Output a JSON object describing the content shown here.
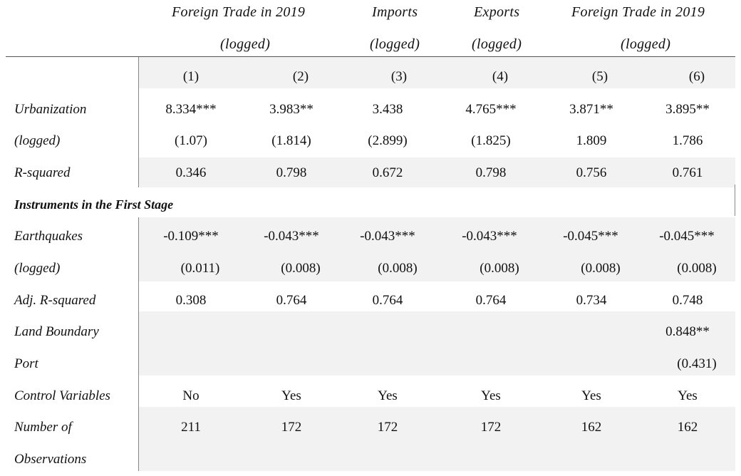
{
  "header": {
    "groups": [
      {
        "line1": "Foreign Trade in 2019",
        "line2": "(logged)"
      },
      {
        "line1": "Imports",
        "line2": "(logged)"
      },
      {
        "line1": "Exports",
        "line2": "(logged)"
      },
      {
        "line1": "Foreign Trade in 2019",
        "line2": "(logged)"
      }
    ],
    "columns": [
      "(1)",
      "(2)",
      "(3)",
      "(4)",
      "(5)",
      "(6)"
    ]
  },
  "rows": [
    {
      "label": "Urbanization",
      "values": [
        "8.334***",
        "3.983**",
        "3.438",
        "4.765***",
        "3.871**",
        "3.895**"
      ]
    },
    {
      "label": "(logged)",
      "values": [
        "(1.07)",
        "(1.814)",
        "(2.899)",
        "(1.825)",
        "1.809",
        "1.786"
      ]
    },
    {
      "label": "R-squared",
      "values": [
        "0.346",
        "0.798",
        "0.672",
        "0.798",
        "0.756",
        "0.761"
      ]
    },
    {
      "label": "Instruments in the First Stage",
      "values": []
    },
    {
      "label": "Earthquakes",
      "values": [
        "-0.109***",
        "-0.043***",
        "-0.043***",
        "-0.043***",
        "-0.045***",
        "-0.045***"
      ]
    },
    {
      "label": "(logged)",
      "values": [
        "(0.011)",
        "(0.008)",
        "(0.008)",
        "(0.008)",
        "(0.008)",
        "(0.008)"
      ]
    },
    {
      "label": "Adj. R-squared",
      "values": [
        "0.308",
        "0.764",
        "0.764",
        "0.764",
        "0.734",
        "0.748"
      ]
    },
    {
      "label": "Land Boundary",
      "values": [
        "",
        "",
        "",
        "",
        "",
        "0.848**"
      ]
    },
    {
      "label": "Port",
      "values": [
        "",
        "",
        "",
        "",
        "",
        "(0.431)"
      ]
    },
    {
      "label": "Control Variables",
      "values": [
        "No",
        "Yes",
        "Yes",
        "Yes",
        "Yes",
        "Yes"
      ]
    },
    {
      "label": "Number of",
      "values": [
        "211",
        "172",
        "172",
        "172",
        "162",
        "162"
      ]
    },
    {
      "label": "Observations",
      "values": []
    }
  ]
}
